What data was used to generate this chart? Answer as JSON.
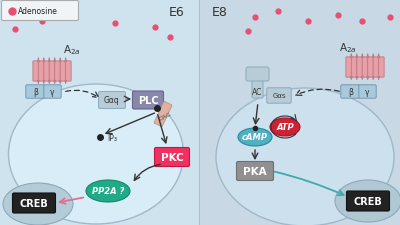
{
  "left_bg": "#cfe3ee",
  "right_bg": "#c8d8e4",
  "cell_left_fc": "#d8edf8",
  "cell_left_ec": "#a0b8c8",
  "cell_right_fc": "#cce0ee",
  "cell_right_ec": "#a0b8c8",
  "nuc_left_fc": "#b4ccd8",
  "nuc_left_ec": "#90a8b8",
  "nuc_right_fc": "#b0c8d4",
  "nuc_right_ec": "#90a8b8",
  "adenosine_color": "#e85070",
  "receptor_fc": "#e8a0a8",
  "receptor_ec": "#c07880",
  "gbeta_fc": "#a8c8dc",
  "gbeta_ec": "#7090a8",
  "gq_fc": "#b8ccd8",
  "gq_ec": "#8aacbc",
  "plc_fc": "#8888aa",
  "plc_ec": "#666688",
  "dag_fc": "#e0b0a0",
  "dag_ec": "#c09080",
  "pkc_fc": "#f03060",
  "pkc_ec": "#c01840",
  "pp2a_fc": "#20aa88",
  "pp2a_ec": "#108866",
  "creb_fc": "#222222",
  "creb_ec": "#111111",
  "ac_fc": "#b8ccd8",
  "ac_ec": "#88aabc",
  "gs_fc": "#b8ccd8",
  "gs_ec": "#88aabc",
  "camp_fc": "#50b0c0",
  "camp_ec": "#2888a0",
  "atp_fc": "#cc2233",
  "atp_ec": "#aa1122",
  "pka_fc": "#909090",
  "pka_ec": "#707070",
  "arrow_dark": "#333333",
  "arrow_pink": "#e07090",
  "arrow_teal": "#40aaaa",
  "legend_fc": "#f0f4f6",
  "legend_ec": "#aaaaaa",
  "title_e6": "E6",
  "title_e8": "E8",
  "adenosine_label": "Adenosine"
}
